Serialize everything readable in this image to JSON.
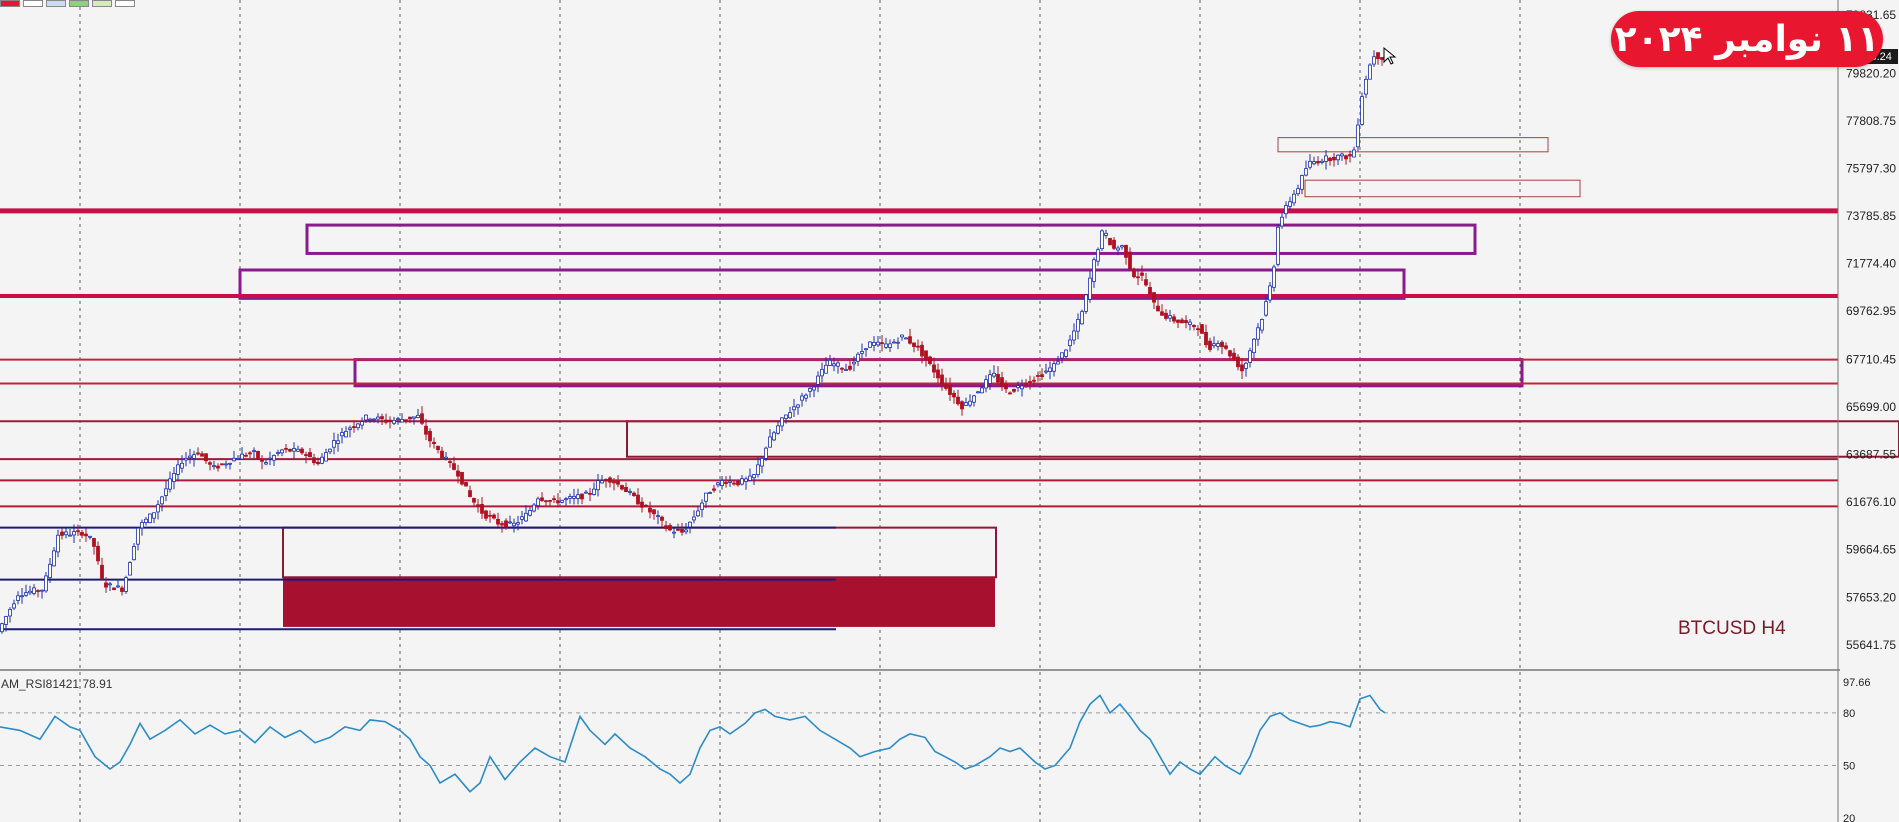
{
  "badge": {
    "text": "۱۱ نوامبر ۲۰۲۴",
    "color": "#e8162e"
  },
  "symbol": "BTCUSD H4",
  "rsi_indicator": {
    "caption": "AM_RSI81421 78.91",
    "value": 78.91
  },
  "toolbar": {
    "colors": [
      "#e8162e",
      "#ffffff",
      "#cfd8ff",
      "#8fd17a",
      "#d6ecb0",
      "#ffffff"
    ]
  },
  "chart_data": {
    "type": "candlestick",
    "symbol": "BTCUSD",
    "timeframe": "H4",
    "price_axis": {
      "ticks": [
        79831.65,
        79820.2,
        77808.75,
        75797.3,
        73785.85,
        71774.4,
        69762.95,
        67710.45,
        65699.0,
        63687.55,
        61676.1,
        59664.65,
        57653.2,
        55641.75
      ],
      "current_price": 79838.24,
      "ylim": [
        55000,
        82500
      ]
    },
    "price_path": [
      [
        0,
        56200
      ],
      [
        20,
        57800
      ],
      [
        45,
        58000
      ],
      [
        60,
        60300
      ],
      [
        85,
        60400
      ],
      [
        95,
        60000
      ],
      [
        105,
        58200
      ],
      [
        125,
        58000
      ],
      [
        140,
        60600
      ],
      [
        155,
        61200
      ],
      [
        170,
        62400
      ],
      [
        185,
        63500
      ],
      [
        200,
        63800
      ],
      [
        215,
        63100
      ],
      [
        240,
        63600
      ],
      [
        255,
        63800
      ],
      [
        265,
        63300
      ],
      [
        285,
        63900
      ],
      [
        305,
        63800
      ],
      [
        320,
        63300
      ],
      [
        335,
        64200
      ],
      [
        350,
        64800
      ],
      [
        370,
        65300
      ],
      [
        390,
        65100
      ],
      [
        405,
        65200
      ],
      [
        420,
        65300
      ],
      [
        430,
        64400
      ],
      [
        445,
        63600
      ],
      [
        460,
        62900
      ],
      [
        472,
        61900
      ],
      [
        485,
        61200
      ],
      [
        500,
        60800
      ],
      [
        515,
        60700
      ],
      [
        530,
        61200
      ],
      [
        540,
        61900
      ],
      [
        555,
        61700
      ],
      [
        570,
        61800
      ],
      [
        590,
        62000
      ],
      [
        600,
        62500
      ],
      [
        610,
        62700
      ],
      [
        625,
        62300
      ],
      [
        640,
        61700
      ],
      [
        660,
        61000
      ],
      [
        670,
        60500
      ],
      [
        685,
        60400
      ],
      [
        695,
        61000
      ],
      [
        710,
        62100
      ],
      [
        725,
        62600
      ],
      [
        740,
        62500
      ],
      [
        755,
        62700
      ],
      [
        770,
        64200
      ],
      [
        785,
        65200
      ],
      [
        800,
        65900
      ],
      [
        815,
        66600
      ],
      [
        830,
        67600
      ],
      [
        850,
        67300
      ],
      [
        870,
        68400
      ],
      [
        890,
        68300
      ],
      [
        905,
        68700
      ],
      [
        920,
        68200
      ],
      [
        935,
        67300
      ],
      [
        950,
        66400
      ],
      [
        965,
        65700
      ],
      [
        980,
        66400
      ],
      [
        995,
        67100
      ],
      [
        1010,
        66300
      ],
      [
        1025,
        66700
      ],
      [
        1040,
        67000
      ],
      [
        1055,
        67400
      ],
      [
        1070,
        68300
      ],
      [
        1085,
        69800
      ],
      [
        1095,
        71700
      ],
      [
        1105,
        73200
      ],
      [
        1115,
        72400
      ],
      [
        1125,
        72500
      ],
      [
        1135,
        71300
      ],
      [
        1145,
        71200
      ],
      [
        1155,
        70100
      ],
      [
        1165,
        69600
      ],
      [
        1175,
        69400
      ],
      [
        1190,
        69200
      ],
      [
        1200,
        69100
      ],
      [
        1210,
        68200
      ],
      [
        1220,
        68500
      ],
      [
        1235,
        67800
      ],
      [
        1245,
        67200
      ],
      [
        1255,
        68500
      ],
      [
        1265,
        69600
      ],
      [
        1275,
        71300
      ],
      [
        1280,
        73400
      ],
      [
        1290,
        74300
      ],
      [
        1300,
        75000
      ],
      [
        1310,
        76000
      ],
      [
        1325,
        76200
      ],
      [
        1340,
        76300
      ],
      [
        1355,
        76300
      ],
      [
        1365,
        79200
      ],
      [
        1375,
        80600
      ],
      [
        1385,
        80500
      ]
    ],
    "support_resistance_lines": [
      {
        "price": 74000,
        "color": "#c80f4a",
        "width": 5
      },
      {
        "price": 70400,
        "color": "#c80f4a",
        "width": 4
      },
      {
        "price": 67710,
        "color": "#c0283a",
        "width": 2
      },
      {
        "price": 66700,
        "color": "#c0283a",
        "width": 2
      },
      {
        "price": 65100,
        "color": "#9e1a3a",
        "width": 2
      },
      {
        "price": 63500,
        "color": "#9e1a3a",
        "width": 2
      },
      {
        "price": 62600,
        "color": "#b01a3a",
        "width": 2
      },
      {
        "price": 61500,
        "color": "#b01a3a",
        "width": 2
      },
      {
        "price": 60600,
        "color": "#1c1a78",
        "width": 2,
        "x1": 0,
        "x2": 836
      },
      {
        "price": 58400,
        "color": "#1c1a78",
        "width": 2,
        "x1": 0,
        "x2": 836
      },
      {
        "price": 56300,
        "color": "#1c1a78",
        "width": 2,
        "x1": 0,
        "x2": 836
      }
    ],
    "zones": [
      {
        "p_top": 73400,
        "p_bottom": 72200,
        "x1": 307,
        "x2": 1475,
        "stroke": "#8b1a8e",
        "width": 3,
        "fill": "none"
      },
      {
        "p_top": 71500,
        "p_bottom": 70300,
        "x1": 240,
        "x2": 1404,
        "stroke": "#8b1a8e",
        "width": 3,
        "fill": "none"
      },
      {
        "p_top": 67710,
        "p_bottom": 66600,
        "x1": 355,
        "x2": 1522,
        "stroke": "#8b1a8e",
        "width": 3,
        "fill": "none"
      },
      {
        "p_top": 65100,
        "p_bottom": 63600,
        "x1": 627,
        "x2": 1899,
        "stroke": "#8a1a34",
        "width": 2,
        "fill": "none"
      },
      {
        "p_top": 60600,
        "p_bottom": 58500,
        "x1": 283,
        "x2": 996,
        "stroke": "#8a1a34",
        "width": 2,
        "fill": "none"
      },
      {
        "p_top": 58500,
        "p_bottom": 56400,
        "x1": 283,
        "x2": 995,
        "stroke": "none",
        "width": 0,
        "fill": "#a8102f"
      },
      {
        "p_top": 77100,
        "p_bottom": 76500,
        "x1": 1278,
        "x2": 1548,
        "stroke": "#a8403f",
        "width": 1,
        "fill": "none"
      },
      {
        "p_top": 75300,
        "p_bottom": 74600,
        "x1": 1305,
        "x2": 1580,
        "stroke": "#a8403f",
        "width": 1,
        "fill": "none"
      }
    ],
    "rsi": {
      "name": "AM_RSI81421",
      "value": 78.91,
      "ticks": [
        97.66,
        80,
        50,
        20
      ],
      "ylim": [
        20,
        97.66
      ],
      "color": "#2c8cc8",
      "path": [
        [
          0,
          72
        ],
        [
          20,
          70
        ],
        [
          40,
          65
        ],
        [
          55,
          78
        ],
        [
          70,
          72
        ],
        [
          80,
          70
        ],
        [
          95,
          55
        ],
        [
          110,
          48
        ],
        [
          120,
          52
        ],
        [
          130,
          62
        ],
        [
          140,
          74
        ],
        [
          150,
          65
        ],
        [
          165,
          70
        ],
        [
          180,
          76
        ],
        [
          195,
          68
        ],
        [
          210,
          73
        ],
        [
          225,
          68
        ],
        [
          240,
          70
        ],
        [
          255,
          63
        ],
        [
          270,
          72
        ],
        [
          285,
          66
        ],
        [
          300,
          70
        ],
        [
          315,
          63
        ],
        [
          330,
          66
        ],
        [
          345,
          72
        ],
        [
          360,
          70
        ],
        [
          370,
          76
        ],
        [
          385,
          75
        ],
        [
          400,
          70
        ],
        [
          410,
          65
        ],
        [
          420,
          55
        ],
        [
          430,
          50
        ],
        [
          440,
          40
        ],
        [
          455,
          45
        ],
        [
          470,
          35
        ],
        [
          480,
          40
        ],
        [
          490,
          55
        ],
        [
          505,
          42
        ],
        [
          520,
          52
        ],
        [
          535,
          60
        ],
        [
          550,
          55
        ],
        [
          565,
          52
        ],
        [
          580,
          78
        ],
        [
          590,
          70
        ],
        [
          605,
          62
        ],
        [
          615,
          68
        ],
        [
          630,
          60
        ],
        [
          645,
          55
        ],
        [
          660,
          48
        ],
        [
          670,
          45
        ],
        [
          680,
          40
        ],
        [
          690,
          45
        ],
        [
          700,
          60
        ],
        [
          710,
          70
        ],
        [
          720,
          72
        ],
        [
          730,
          68
        ],
        [
          745,
          74
        ],
        [
          755,
          80
        ],
        [
          765,
          82
        ],
        [
          775,
          78
        ],
        [
          790,
          76
        ],
        [
          805,
          78
        ],
        [
          820,
          70
        ],
        [
          835,
          65
        ],
        [
          850,
          60
        ],
        [
          860,
          55
        ],
        [
          875,
          58
        ],
        [
          890,
          60
        ],
        [
          900,
          65
        ],
        [
          910,
          68
        ],
        [
          925,
          66
        ],
        [
          935,
          58
        ],
        [
          945,
          55
        ],
        [
          955,
          52
        ],
        [
          965,
          48
        ],
        [
          975,
          50
        ],
        [
          990,
          55
        ],
        [
          1000,
          60
        ],
        [
          1010,
          58
        ],
        [
          1020,
          60
        ],
        [
          1035,
          52
        ],
        [
          1045,
          48
        ],
        [
          1055,
          50
        ],
        [
          1070,
          60
        ],
        [
          1080,
          75
        ],
        [
          1090,
          85
        ],
        [
          1100,
          90
        ],
        [
          1110,
          80
        ],
        [
          1120,
          85
        ],
        [
          1130,
          78
        ],
        [
          1140,
          70
        ],
        [
          1150,
          65
        ],
        [
          1160,
          55
        ],
        [
          1170,
          45
        ],
        [
          1180,
          52
        ],
        [
          1190,
          48
        ],
        [
          1200,
          45
        ],
        [
          1215,
          55
        ],
        [
          1225,
          50
        ],
        [
          1240,
          45
        ],
        [
          1250,
          55
        ],
        [
          1260,
          70
        ],
        [
          1270,
          78
        ],
        [
          1280,
          80
        ],
        [
          1290,
          76
        ],
        [
          1300,
          74
        ],
        [
          1310,
          72
        ],
        [
          1320,
          73
        ],
        [
          1330,
          75
        ],
        [
          1340,
          74
        ],
        [
          1350,
          72
        ],
        [
          1360,
          88
        ],
        [
          1370,
          90
        ],
        [
          1380,
          82
        ],
        [
          1385,
          80
        ]
      ]
    }
  }
}
